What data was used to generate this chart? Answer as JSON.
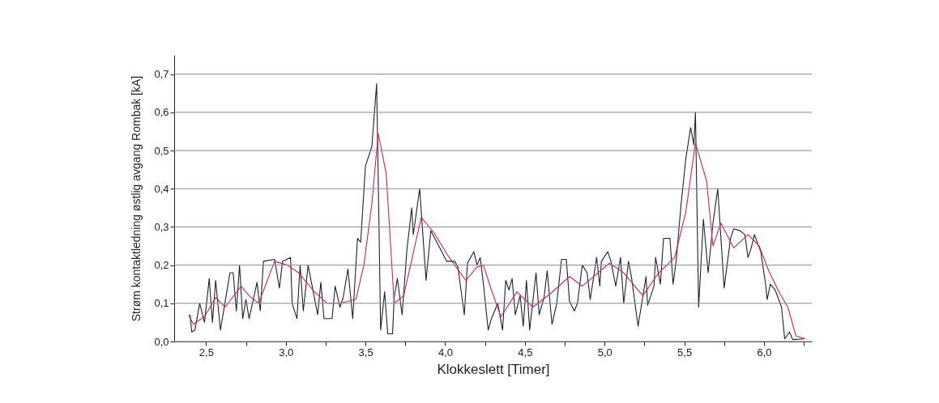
{
  "chart_data": {
    "type": "line",
    "xlabel": "Klokkeslett [Timer]",
    "ylabel": "Strøm kontaktledning østlig avgang Rombak [kA]",
    "grid": "y",
    "xlim": [
      2.3,
      6.3
    ],
    "ylim": [
      0,
      0.75
    ],
    "xticks": [
      {
        "value": 2.5,
        "label": "2,5"
      },
      {
        "value": 2.75,
        "label": null
      },
      {
        "value": 3.0,
        "label": "3,0"
      },
      {
        "value": 3.25,
        "label": null
      },
      {
        "value": 3.5,
        "label": "3,5"
      },
      {
        "value": 3.75,
        "label": null
      },
      {
        "value": 4.0,
        "label": "4,0"
      },
      {
        "value": 4.25,
        "label": null
      },
      {
        "value": 4.5,
        "label": "4,5"
      },
      {
        "value": 4.75,
        "label": null
      },
      {
        "value": 5.0,
        "label": "5,0"
      },
      {
        "value": 5.25,
        "label": null
      },
      {
        "value": 5.5,
        "label": "5,5"
      },
      {
        "value": 5.75,
        "label": null
      },
      {
        "value": 6.0,
        "label": "6,0"
      },
      {
        "value": 6.25,
        "label": null
      }
    ],
    "yticks": [
      {
        "value": 0,
        "label": "0,0"
      },
      {
        "value": 0.1,
        "label": "0,1"
      },
      {
        "value": 0.2,
        "label": "0,2"
      },
      {
        "value": 0.3,
        "label": "0,3"
      },
      {
        "value": 0.4,
        "label": "0,4"
      },
      {
        "value": 0.5,
        "label": "0,5"
      },
      {
        "value": 0.6,
        "label": "0,6"
      },
      {
        "value": 0.7,
        "label": "0,7"
      }
    ],
    "series": [
      {
        "color": "#222222",
        "x": [
          2.4,
          2.41,
          2.43,
          2.46,
          2.49,
          2.52,
          2.54,
          2.56,
          2.59,
          2.65,
          2.67,
          2.69,
          2.71,
          2.73,
          2.75,
          2.77,
          2.82,
          2.84,
          2.86,
          2.93,
          2.96,
          2.98,
          3.03,
          3.04,
          3.07,
          3.09,
          3.11,
          3.14,
          3.2,
          3.22,
          3.24,
          3.29,
          3.31,
          3.34,
          3.36,
          3.39,
          3.42,
          3.45,
          3.47,
          3.5,
          3.54,
          3.57,
          3.585,
          3.595,
          3.62,
          3.64,
          3.67,
          3.68,
          3.7,
          3.73,
          3.76,
          3.79,
          3.8,
          3.84,
          3.88,
          3.91,
          3.96,
          4.01,
          4.06,
          4.08,
          4.12,
          4.14,
          4.18,
          4.2,
          4.22,
          4.24,
          4.27,
          4.29,
          4.33,
          4.36,
          4.38,
          4.4,
          4.42,
          4.44,
          4.47,
          4.49,
          4.51,
          4.53,
          4.57,
          4.59,
          4.62,
          4.64,
          4.67,
          4.7,
          4.73,
          4.76,
          4.78,
          4.81,
          4.83,
          4.86,
          4.89,
          4.91,
          4.95,
          4.97,
          4.98,
          5.02,
          5.04,
          5.07,
          5.1,
          5.12,
          5.15,
          5.17,
          5.21,
          5.26,
          5.27,
          5.31,
          5.32,
          5.35,
          5.37,
          5.41,
          5.43,
          5.45,
          5.48,
          5.51,
          5.54,
          5.56,
          5.57,
          5.59,
          5.62,
          5.65,
          5.68,
          5.71,
          5.75,
          5.79,
          5.81,
          5.85,
          5.88,
          5.9,
          5.92,
          5.94,
          5.98,
          6.01,
          6.02,
          6.04,
          6.07,
          6.11,
          6.13,
          6.16,
          6.18,
          6.25
        ],
        "values": [
          0.07,
          0.025,
          0.03,
          0.1,
          0.05,
          0.165,
          0.05,
          0.16,
          0.03,
          0.18,
          0.18,
          0.08,
          0.2,
          0.06,
          0.11,
          0.06,
          0.155,
          0.08,
          0.21,
          0.215,
          0.14,
          0.21,
          0.22,
          0.1,
          0.06,
          0.2,
          0.08,
          0.2,
          0.07,
          0.155,
          0.06,
          0.06,
          0.145,
          0.09,
          0.115,
          0.19,
          0.06,
          0.27,
          0.26,
          0.46,
          0.51,
          0.675,
          0.3,
          0.03,
          0.13,
          0.02,
          0.02,
          0.115,
          0.165,
          0.07,
          0.24,
          0.35,
          0.28,
          0.4,
          0.16,
          0.29,
          0.25,
          0.21,
          0.21,
          0.195,
          0.07,
          0.205,
          0.235,
          0.2,
          0.22,
          0.15,
          0.03,
          0.06,
          0.1,
          0.03,
          0.16,
          0.135,
          0.165,
          0.07,
          0.12,
          0.04,
          0.16,
          0.03,
          0.18,
          0.07,
          0.115,
          0.185,
          0.045,
          0.1,
          0.215,
          0.215,
          0.105,
          0.08,
          0.1,
          0.2,
          0.18,
          0.11,
          0.22,
          0.145,
          0.21,
          0.235,
          0.21,
          0.145,
          0.22,
          0.1,
          0.21,
          0.165,
          0.04,
          0.17,
          0.095,
          0.145,
          0.22,
          0.15,
          0.27,
          0.27,
          0.15,
          0.215,
          0.36,
          0.48,
          0.56,
          0.515,
          0.6,
          0.09,
          0.32,
          0.18,
          0.31,
          0.4,
          0.14,
          0.27,
          0.295,
          0.29,
          0.28,
          0.22,
          0.245,
          0.28,
          0.235,
          0.15,
          0.11,
          0.15,
          0.135,
          0.09,
          0.007,
          0.025,
          0.005,
          0.007
        ]
      },
      {
        "color": "#c8285a",
        "x": [
          2.39,
          2.42,
          2.49,
          2.56,
          2.62,
          2.72,
          2.77,
          2.83,
          2.93,
          3.01,
          3.08,
          3.18,
          3.26,
          3.34,
          3.44,
          3.49,
          3.54,
          3.58,
          3.63,
          3.68,
          3.74,
          3.85,
          3.93,
          4.01,
          4.06,
          4.13,
          4.2,
          4.24,
          4.29,
          4.35,
          4.45,
          4.55,
          4.66,
          4.78,
          4.86,
          5.03,
          5.12,
          5.24,
          5.34,
          5.44,
          5.51,
          5.57,
          5.64,
          5.68,
          5.73,
          5.81,
          5.9,
          5.97,
          6.03,
          6.1,
          6.15,
          6.2,
          6.26
        ],
        "values": [
          0.07,
          0.045,
          0.065,
          0.115,
          0.09,
          0.145,
          0.12,
          0.1,
          0.21,
          0.2,
          0.18,
          0.13,
          0.1,
          0.1,
          0.11,
          0.2,
          0.36,
          0.545,
          0.44,
          0.1,
          0.12,
          0.325,
          0.285,
          0.23,
          0.2,
          0.16,
          0.195,
          0.2,
          0.135,
          0.065,
          0.13,
          0.09,
          0.125,
          0.17,
          0.145,
          0.205,
          0.18,
          0.12,
          0.18,
          0.22,
          0.34,
          0.52,
          0.42,
          0.25,
          0.31,
          0.245,
          0.28,
          0.25,
          0.185,
          0.125,
          0.09,
          0.015,
          0.007
        ]
      }
    ]
  }
}
